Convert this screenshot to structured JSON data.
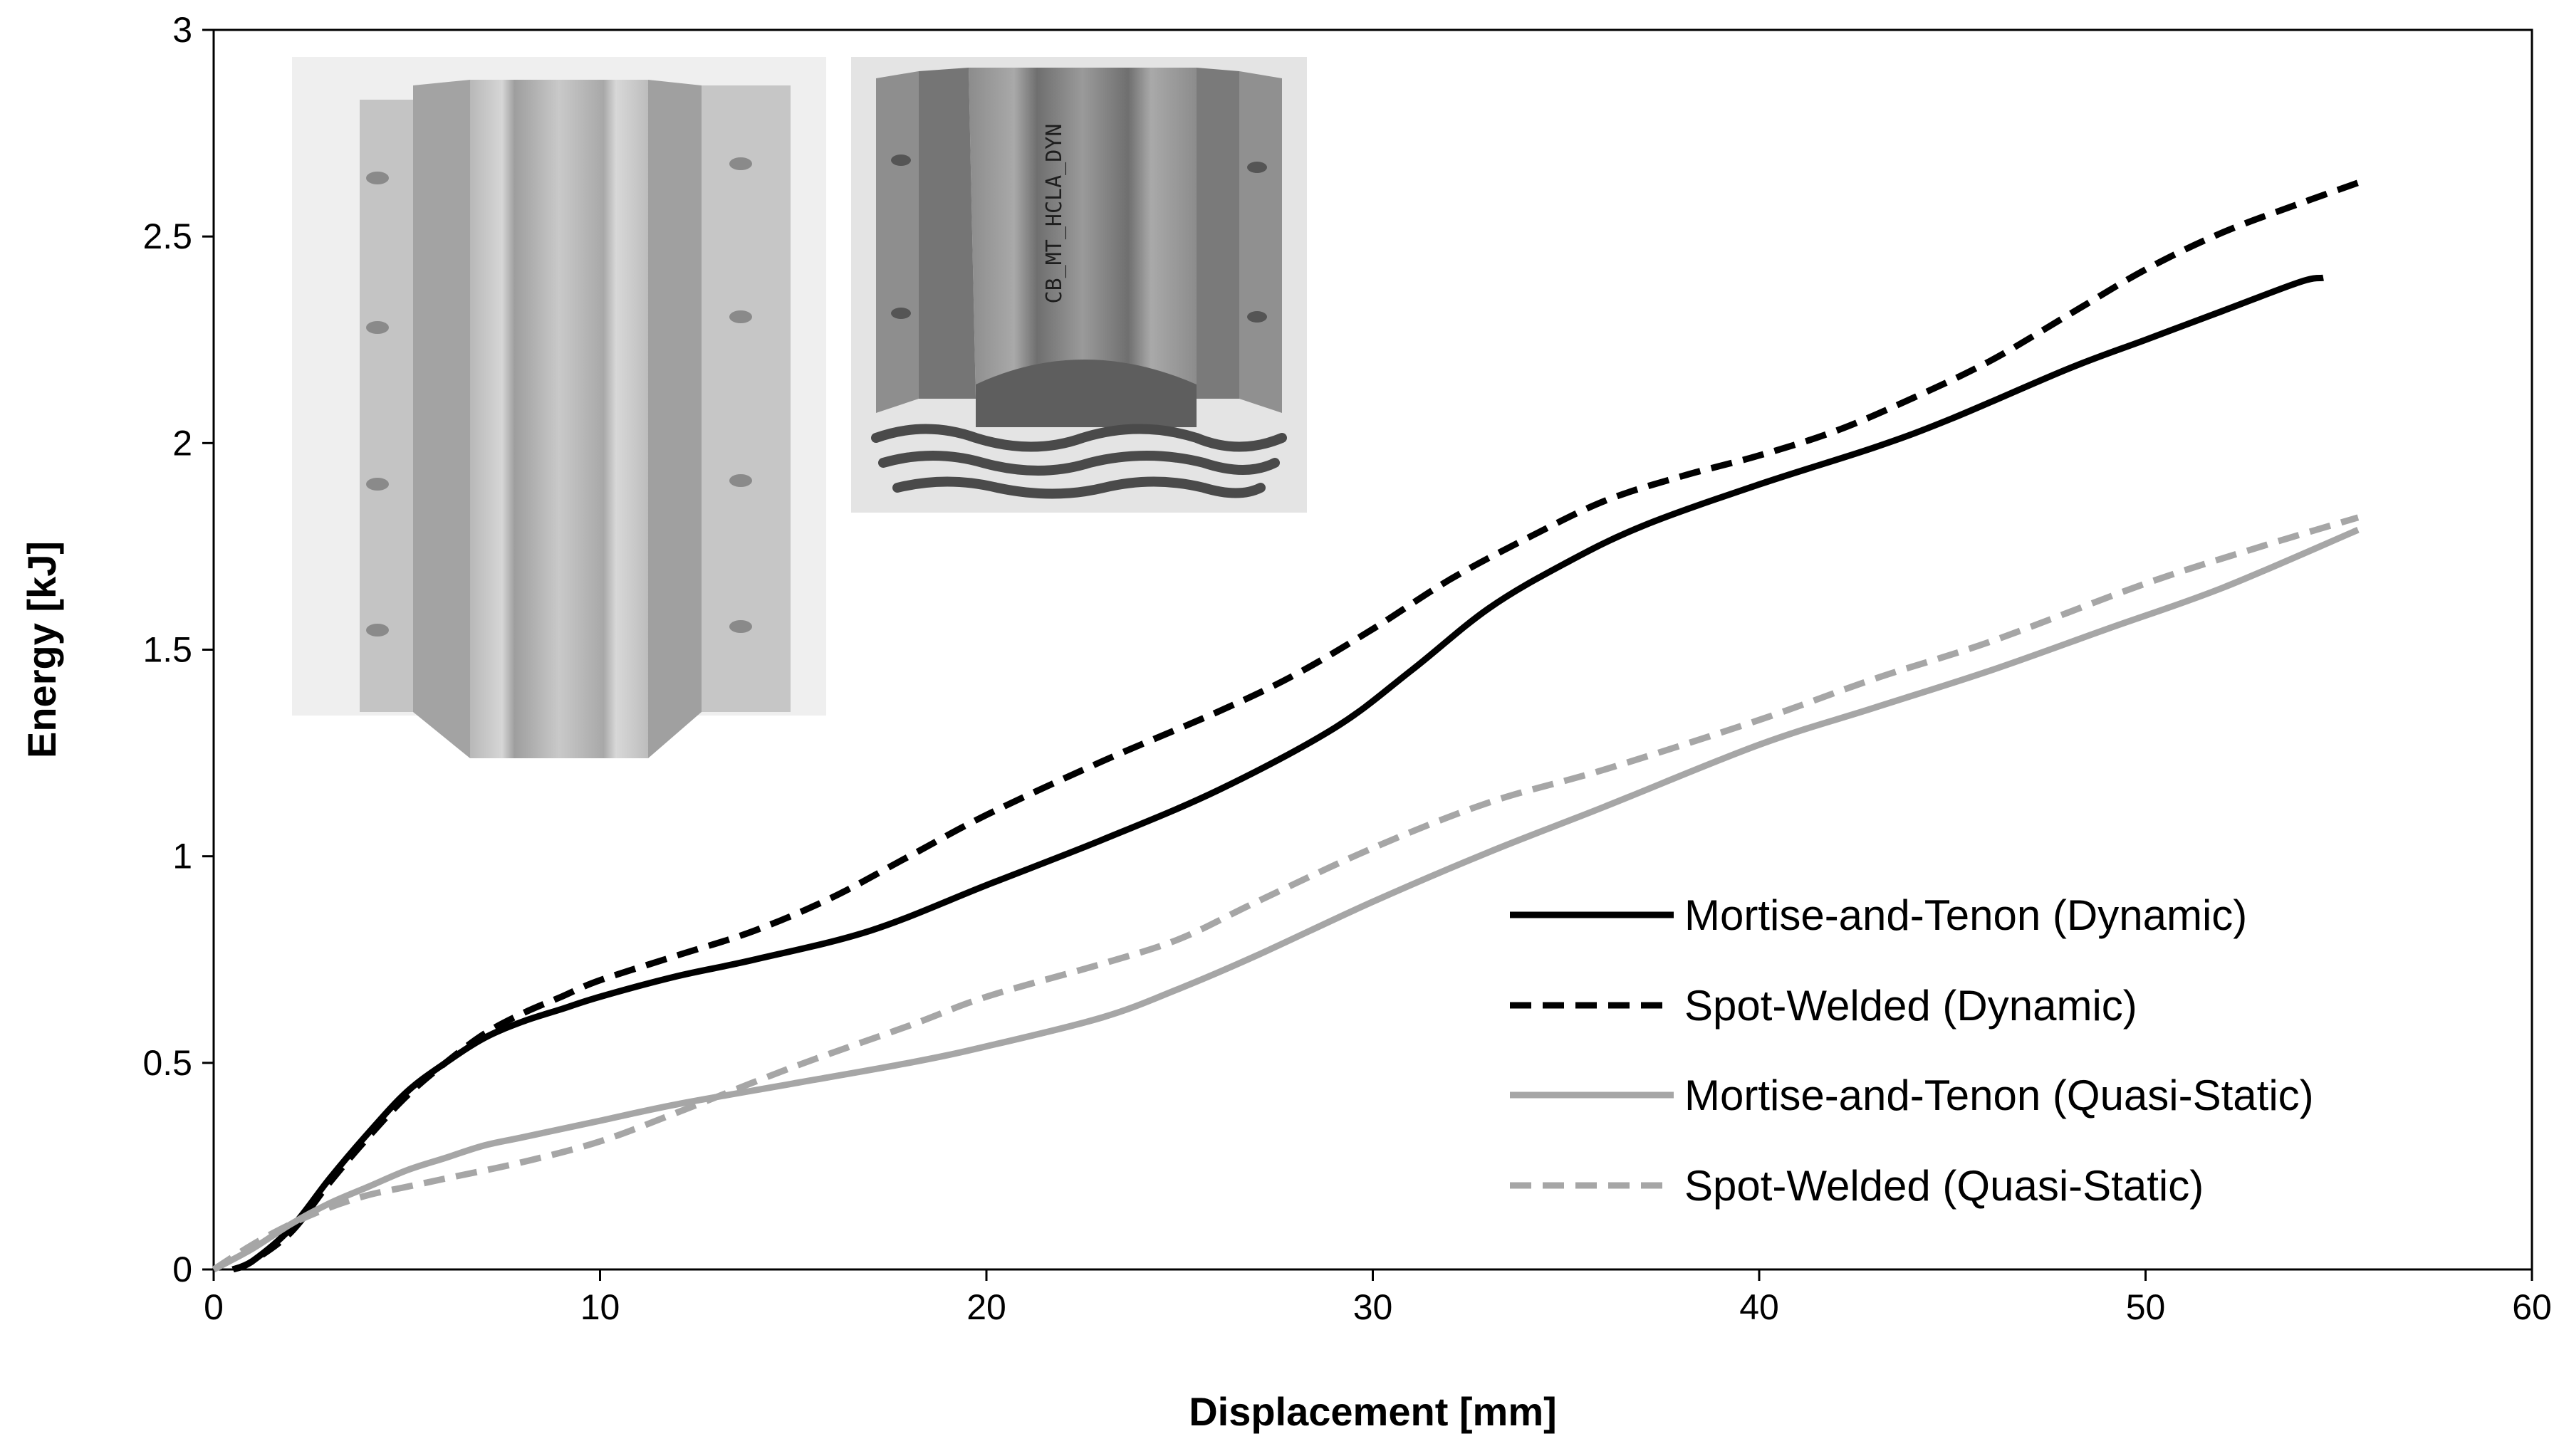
{
  "chart_data": {
    "type": "line",
    "title": "",
    "xlabel": "Displacement [mm]",
    "ylabel": "Energy [kJ]",
    "xlim": [
      0,
      60
    ],
    "ylim": [
      0,
      3
    ],
    "xticks": [
      "0",
      "10",
      "20",
      "30",
      "40",
      "50",
      "60"
    ],
    "yticks": [
      "0",
      "0.5",
      "1",
      "1.5",
      "2",
      "2.5",
      "3"
    ],
    "grid": false,
    "legend_position": "lower-right",
    "series": [
      {
        "name": "Mortise-and-Tenon (Dynamic)",
        "color": "#000000",
        "dash": "solid",
        "x": [
          0.5,
          1,
          2,
          3,
          4,
          5,
          6,
          7,
          8,
          9,
          10,
          12,
          14,
          17,
          20,
          23,
          26,
          29,
          31,
          33,
          35,
          37,
          40,
          43,
          45,
          48,
          50,
          52,
          54,
          54.6
        ],
        "y": [
          0,
          0.02,
          0.1,
          0.22,
          0.33,
          0.43,
          0.5,
          0.56,
          0.6,
          0.63,
          0.66,
          0.71,
          0.75,
          0.82,
          0.93,
          1.04,
          1.16,
          1.31,
          1.45,
          1.6,
          1.71,
          1.8,
          1.9,
          1.99,
          2.06,
          2.18,
          2.25,
          2.32,
          2.39,
          2.4
        ]
      },
      {
        "name": "Spot-Welded (Dynamic)",
        "color": "#000000",
        "dash": "dashed",
        "x": [
          0.5,
          1,
          2,
          3,
          4,
          5,
          6,
          7,
          8,
          9,
          10,
          12,
          14,
          16,
          18,
          20,
          23,
          26,
          28,
          30,
          32,
          34,
          36,
          38,
          40,
          42,
          44,
          46,
          48,
          50,
          52,
          54,
          55.5
        ],
        "y": [
          0,
          0.02,
          0.09,
          0.21,
          0.32,
          0.42,
          0.5,
          0.57,
          0.62,
          0.66,
          0.7,
          0.76,
          0.82,
          0.9,
          1.0,
          1.1,
          1.23,
          1.35,
          1.44,
          1.55,
          1.67,
          1.77,
          1.86,
          1.92,
          1.97,
          2.03,
          2.11,
          2.2,
          2.31,
          2.42,
          2.51,
          2.58,
          2.63
        ]
      },
      {
        "name": "Mortise-and-Tenon (Quasi-Static)",
        "color": "#a6a6a6",
        "dash": "solid",
        "x": [
          0,
          1,
          2,
          3,
          4,
          5,
          6,
          7,
          8,
          10,
          12,
          15,
          18,
          20,
          23,
          25,
          27,
          30,
          33,
          36,
          40,
          43,
          46,
          49,
          52,
          55.5
        ],
        "y": [
          0,
          0.05,
          0.11,
          0.16,
          0.2,
          0.24,
          0.27,
          0.3,
          0.32,
          0.36,
          0.4,
          0.45,
          0.5,
          0.54,
          0.61,
          0.68,
          0.76,
          0.89,
          1.01,
          1.12,
          1.27,
          1.36,
          1.45,
          1.55,
          1.65,
          1.79
        ]
      },
      {
        "name": "Spot-Welded (Quasi-Static)",
        "color": "#a6a6a6",
        "dash": "dashed",
        "x": [
          0,
          1,
          2,
          3,
          4,
          5,
          6,
          8,
          10,
          12,
          15,
          18,
          20,
          23,
          25,
          27,
          30,
          33,
          36,
          40,
          43,
          46,
          50,
          53,
          55.5
        ],
        "y": [
          0,
          0.06,
          0.11,
          0.15,
          0.18,
          0.2,
          0.22,
          0.26,
          0.31,
          0.38,
          0.49,
          0.59,
          0.66,
          0.74,
          0.8,
          0.89,
          1.02,
          1.13,
          1.21,
          1.33,
          1.43,
          1.52,
          1.66,
          1.75,
          1.82
        ]
      }
    ]
  },
  "insets": [
    {
      "label": "undeformed-specimen-photo"
    },
    {
      "label": "crushed-specimen-photo",
      "marking": "CB_MT_HCLA_DYN"
    }
  ]
}
